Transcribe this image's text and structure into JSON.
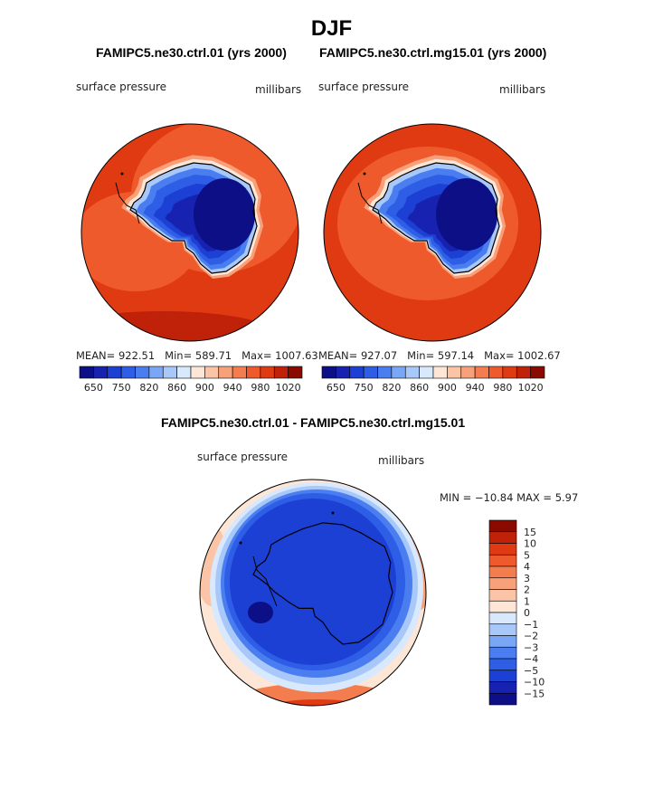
{
  "figure": {
    "title": "DJF"
  },
  "colors": {
    "blues": [
      "#0d0f86",
      "#1723b0",
      "#1c3fd4",
      "#2e5ee6",
      "#4a7ef0",
      "#7aa6f6",
      "#a8c8fa",
      "#d8e8fd"
    ],
    "reds": [
      "#fde6d6",
      "#fbc4a6",
      "#f7a07a",
      "#f47d50",
      "#ef5a2c",
      "#e03a12",
      "#bf2208",
      "#8b0a00"
    ],
    "diffBlues": [
      "#0d0f86",
      "#1723b0",
      "#1c3fd4",
      "#2e5ee6",
      "#4a7ef0",
      "#7aa6f6",
      "#a8c8fa",
      "#d8e8fd"
    ],
    "diffReds": [
      "#fde6d6",
      "#fbc4a6",
      "#f7a07a",
      "#f47d50",
      "#ef5a2c",
      "#e03a12",
      "#bf2208",
      "#8b0a00"
    ]
  },
  "chart_data": [
    {
      "type": "heatmap",
      "projection": "south-polar-stereographic",
      "title": "FAMIPC5.ne30.ctrl.01 (yrs 2000)",
      "variable": "surface pressure",
      "units": "millibars",
      "stats": {
        "mean_label": "MEAN=",
        "mean": "922.51",
        "min_label": "Min=",
        "min": "589.71",
        "max_label": "Max=",
        "max": "1007.63"
      },
      "colorbar_labels": [
        "650",
        "750",
        "820",
        "860",
        "900",
        "940",
        "980",
        "1020"
      ]
    },
    {
      "type": "heatmap",
      "projection": "south-polar-stereographic",
      "title": "FAMIPC5.ne30.ctrl.mg15.01 (yrs 2000)",
      "variable": "surface pressure",
      "units": "millibars",
      "stats": {
        "mean_label": "MEAN=",
        "mean": "927.07",
        "min_label": "Min=",
        "min": "597.14",
        "max_label": "Max=",
        "max": "1002.67"
      },
      "colorbar_labels": [
        "650",
        "750",
        "820",
        "860",
        "900",
        "940",
        "980",
        "1020"
      ]
    },
    {
      "type": "heatmap",
      "projection": "south-polar-stereographic",
      "title": "FAMIPC5.ne30.ctrl.01 - FAMIPC5.ne30.ctrl.mg15.01",
      "variable": "surface pressure",
      "units": "millibars",
      "minmax_text": "MIN = −10.84  MAX =    5.97",
      "min": -10.84,
      "max": 5.97,
      "colorbar_labels": [
        "15",
        "10",
        "5",
        "4",
        "3",
        "2",
        "1",
        "0",
        "−1",
        "−2",
        "−3",
        "−4",
        "−5",
        "−10",
        "−15"
      ]
    }
  ]
}
